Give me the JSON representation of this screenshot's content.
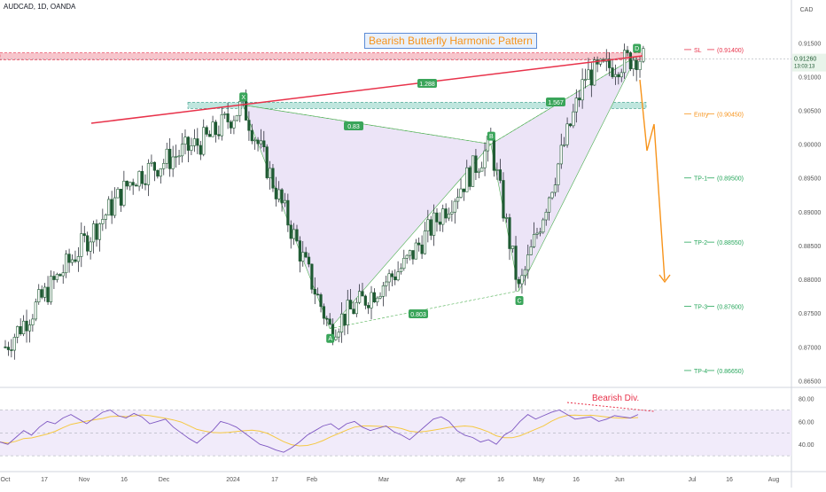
{
  "header": {
    "symbol": "AUDCAD, 1D, OANDA",
    "currency": "CAD",
    "pattern_title": "Bearish Butterfly Harmonic Pattern"
  },
  "price_readout": {
    "last": "0.91260",
    "countdown": "13:03:13"
  },
  "chart_data": {
    "type": "line",
    "title": "Bearish Butterfly Harmonic Pattern",
    "x_labels": [
      "Oct",
      "17",
      "Nov",
      "16",
      "Dec",
      "2024",
      "17",
      "Feb",
      "Mar",
      "Apr",
      "16",
      "May",
      "16",
      "Jun",
      "Jul",
      "16",
      "Aug"
    ],
    "y_ticks": [
      "0.91500",
      "0.91000",
      "0.90500",
      "0.90000",
      "0.89500",
      "0.89000",
      "0.88500",
      "0.88000",
      "0.87500",
      "0.87000",
      "0.86500"
    ],
    "ylim": [
      0.864,
      0.9195
    ],
    "harmonic_points": [
      {
        "name": "X",
        "date": "2024-01-02",
        "price": 0.9058
      },
      {
        "name": "A",
        "date": "2024-02-05",
        "price": 0.8727
      },
      {
        "name": "B",
        "date": "2024-04-08",
        "price": 0.9
      },
      {
        "name": "C",
        "date": "2024-04-19",
        "price": 0.8783
      },
      {
        "name": "D",
        "date": "2024-06-04",
        "price": 0.913
      }
    ],
    "ratios": [
      {
        "label": "0.83",
        "between": "XA-AB"
      },
      {
        "label": "0.803",
        "between": "AC"
      },
      {
        "label": "1.567",
        "between": "BD"
      },
      {
        "label": "1.288",
        "between": "trendline"
      }
    ],
    "levels": [
      {
        "name": "SL",
        "value": 0.914,
        "label": "(0.91400)",
        "color": "#e8324a"
      },
      {
        "name": "Entry",
        "value": 0.9045,
        "label": "(0.90450)",
        "color": "#f7931a"
      },
      {
        "name": "TP-1",
        "value": 0.895,
        "label": "(0.89500)",
        "color": "#26a65b"
      },
      {
        "name": "TP-2",
        "value": 0.8855,
        "label": "(0.88550)",
        "color": "#26a65b"
      },
      {
        "name": "TP-3",
        "value": 0.876,
        "label": "(0.87600)",
        "color": "#26a65b"
      },
      {
        "name": "TP-4",
        "value": 0.8665,
        "label": "(0.86650)",
        "color": "#26a65b"
      }
    ],
    "rsi": {
      "ticks": [
        "80.00",
        "60.00",
        "40.00"
      ],
      "annotation": "Bearish Div.",
      "values": [
        42,
        40,
        46,
        52,
        48,
        55,
        60,
        58,
        63,
        66,
        62,
        58,
        63,
        68,
        70,
        65,
        63,
        67,
        64,
        58,
        60,
        62,
        55,
        50,
        45,
        41,
        47,
        52,
        60,
        58,
        55,
        50,
        45,
        40,
        38,
        35,
        33,
        37,
        42,
        48,
        52,
        56,
        58,
        53,
        58,
        60,
        55,
        52,
        54,
        56,
        51,
        48,
        44,
        50,
        56,
        62,
        64,
        60,
        52,
        48,
        46,
        42,
        44,
        40,
        48,
        52,
        60,
        66,
        62,
        65,
        68,
        70,
        66,
        62,
        63,
        64,
        60,
        62,
        65,
        64,
        63,
        66
      ]
    }
  }
}
